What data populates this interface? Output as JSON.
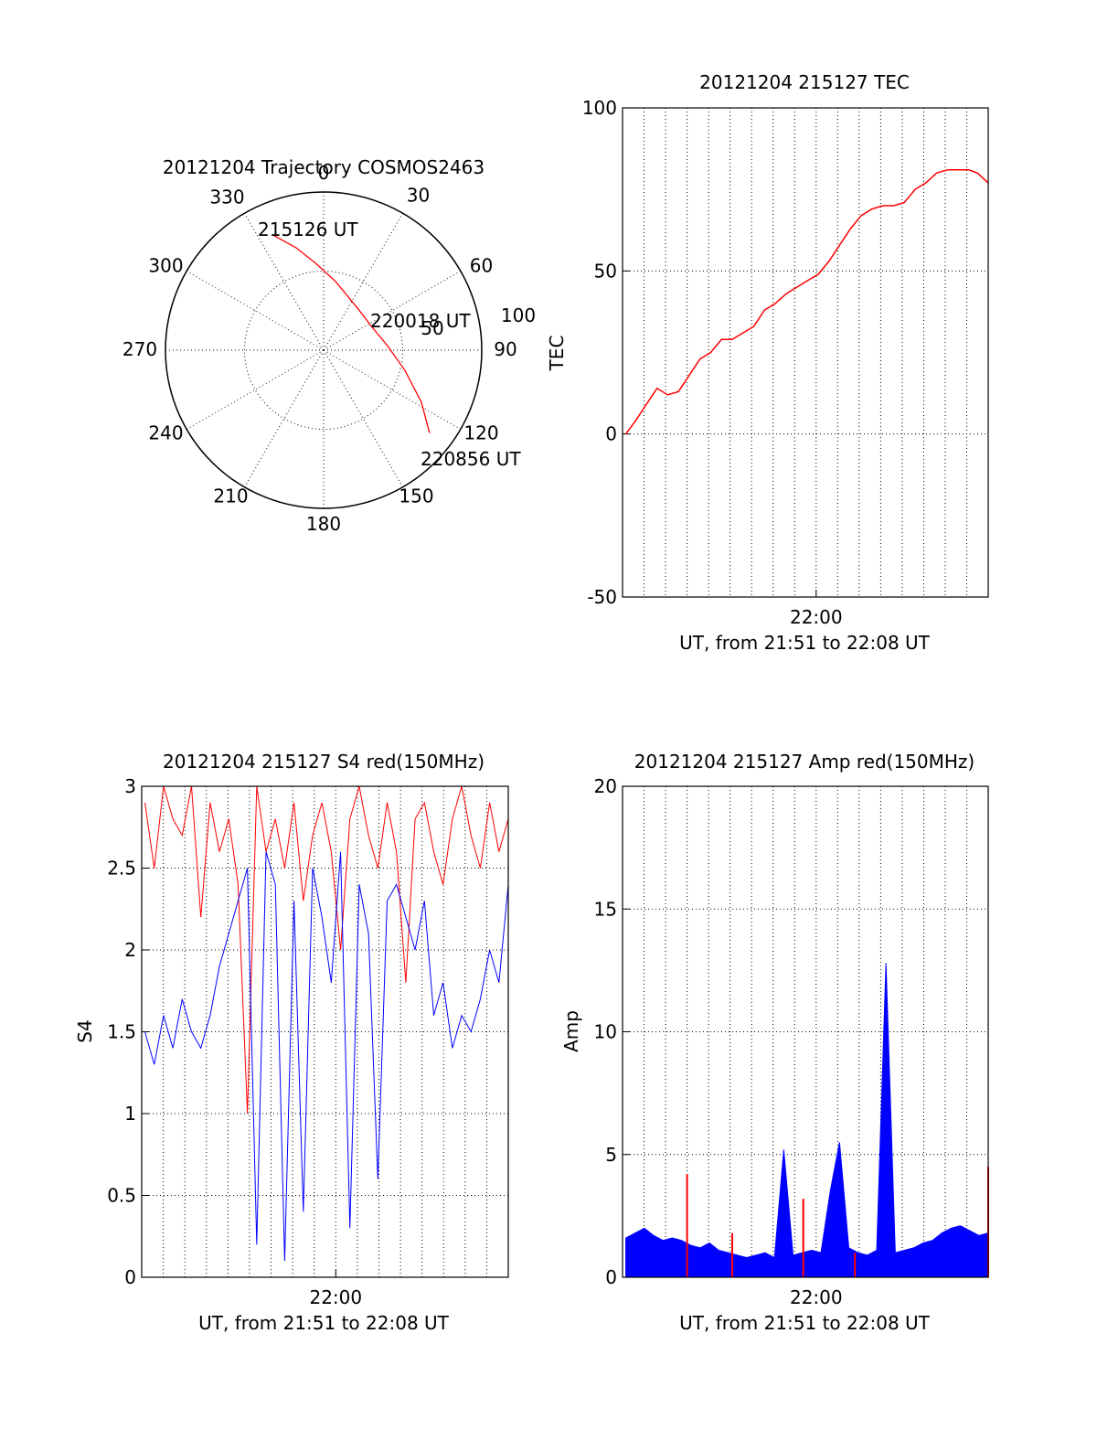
{
  "chart_data": [
    {
      "type": "polar",
      "title": "20121204 Trajectory COSMOS2463",
      "angle_ticks": [
        "0",
        "30",
        "60",
        "90",
        "120",
        "150",
        "180",
        "210",
        "240",
        "270",
        "300",
        "330"
      ],
      "radial_ticks": [
        "50",
        "100"
      ],
      "trajectory": {
        "color": "#ff0000",
        "points": [
          {
            "az": 336,
            "r": 0.8
          },
          {
            "az": 345,
            "r": 0.67
          },
          {
            "az": 355,
            "r": 0.55
          },
          {
            "az": 10,
            "r": 0.44
          },
          {
            "az": 40,
            "r": 0.34
          },
          {
            "az": 65,
            "r": 0.34
          },
          {
            "az": 85,
            "r": 0.4
          },
          {
            "az": 104,
            "r": 0.53
          },
          {
            "az": 118,
            "r": 0.7
          },
          {
            "az": 128,
            "r": 0.85
          }
        ]
      },
      "annotations": [
        "215126 UT",
        "220018 UT",
        "220856 UT"
      ]
    },
    {
      "type": "line",
      "title": "20121204 215127 TEC",
      "ylabel": "TEC",
      "xlabel": "UT, from 21:51 to 22:08 UT",
      "x_tick_labels": [
        "22:00"
      ],
      "xlim": [
        21.85,
        22.1333
      ],
      "ylim": [
        -50,
        100
      ],
      "y_ticks": [
        -50,
        0,
        50,
        100
      ],
      "grid": true,
      "series": [
        {
          "color": "#ff0000",
          "x": [
            21.8525,
            21.86,
            21.8683,
            21.8767,
            21.885,
            21.8933,
            21.9017,
            21.91,
            21.9183,
            21.9267,
            21.935,
            21.9433,
            21.9517,
            21.96,
            21.9683,
            21.9767,
            21.985,
            21.9933,
            22.0017,
            22.01,
            22.0183,
            22.0267,
            22.035,
            22.0433,
            22.0517,
            22.06,
            22.0683,
            22.0767,
            22.085,
            22.0933,
            22.1017,
            22.11,
            22.1183,
            22.125,
            22.1333
          ],
          "values": [
            0,
            4,
            9,
            14,
            12,
            13,
            18,
            23,
            25,
            29,
            29,
            31,
            33,
            38,
            40,
            43,
            45,
            47,
            49,
            53,
            58,
            63,
            67,
            69,
            70,
            70,
            71,
            75,
            77,
            80,
            81,
            81,
            81,
            80,
            77
          ]
        }
      ]
    },
    {
      "type": "line",
      "title": "20121204 215127 S4 red(150MHz)",
      "ylabel": "S4",
      "xlabel": "UT, from 21:51 to 22:08 UT",
      "x_tick_labels": [
        "22:00"
      ],
      "xlim": [
        21.85,
        22.1333
      ],
      "ylim": [
        0,
        3
      ],
      "y_ticks": [
        0,
        0.5,
        1,
        1.5,
        2,
        2.5,
        3
      ],
      "grid": true,
      "series": [
        {
          "color": "#ff0000",
          "x_range": [
            21.8525,
            22.1333
          ],
          "values": [
            2.9,
            2.5,
            3.0,
            2.8,
            2.7,
            3.0,
            2.2,
            2.9,
            2.6,
            2.8,
            2.4,
            1.0,
            3.0,
            2.6,
            2.8,
            2.5,
            2.9,
            2.3,
            2.7,
            2.9,
            2.6,
            2.0,
            2.8,
            3.0,
            2.7,
            2.5,
            2.9,
            2.6,
            1.8,
            2.8,
            2.9,
            2.6,
            2.4,
            2.8,
            3.0,
            2.7,
            2.5,
            2.9,
            2.6,
            2.8
          ]
        },
        {
          "color": "#0000ff",
          "x_range": [
            21.8525,
            22.1333
          ],
          "values": [
            1.5,
            1.3,
            1.6,
            1.4,
            1.7,
            1.5,
            1.4,
            1.6,
            1.9,
            2.1,
            2.3,
            2.5,
            0.2,
            2.6,
            2.4,
            0.1,
            2.3,
            0.4,
            2.5,
            2.2,
            1.8,
            2.6,
            0.3,
            2.4,
            2.1,
            0.6,
            2.3,
            2.4,
            2.2,
            2.0,
            2.3,
            1.6,
            1.8,
            1.4,
            1.6,
            1.5,
            1.7,
            2.0,
            1.8,
            2.4
          ]
        }
      ]
    },
    {
      "type": "line",
      "title": "20121204 215127 Amp red(150MHz)",
      "ylabel": "Amp",
      "xlabel": "UT, from 21:51 to 22:08 UT",
      "x_tick_labels": [
        "22:00"
      ],
      "xlim": [
        21.85,
        22.1333
      ],
      "ylim": [
        0,
        20
      ],
      "y_ticks": [
        0,
        5,
        10,
        15,
        20
      ],
      "grid": true,
      "series": [
        {
          "color": "#ff0000",
          "x": [
            21.9,
            21.935,
            21.99,
            22.03,
            22.1333
          ],
          "values": [
            4.2,
            1.8,
            3.2,
            1.0,
            4.5
          ]
        },
        {
          "color": "#0000ff",
          "x_range": [
            21.8525,
            22.1333
          ],
          "values": [
            1.6,
            1.8,
            2.0,
            1.7,
            1.5,
            1.6,
            1.5,
            1.3,
            1.2,
            1.4,
            1.1,
            1.0,
            0.9,
            0.8,
            0.9,
            1.0,
            0.8,
            5.2,
            0.9,
            1.0,
            1.1,
            1.0,
            3.5,
            5.5,
            1.2,
            1.0,
            0.9,
            1.1,
            12.8,
            1.0,
            1.1,
            1.2,
            1.4,
            1.5,
            1.8,
            2.0,
            2.1,
            1.9,
            1.7,
            1.8
          ]
        }
      ]
    }
  ]
}
